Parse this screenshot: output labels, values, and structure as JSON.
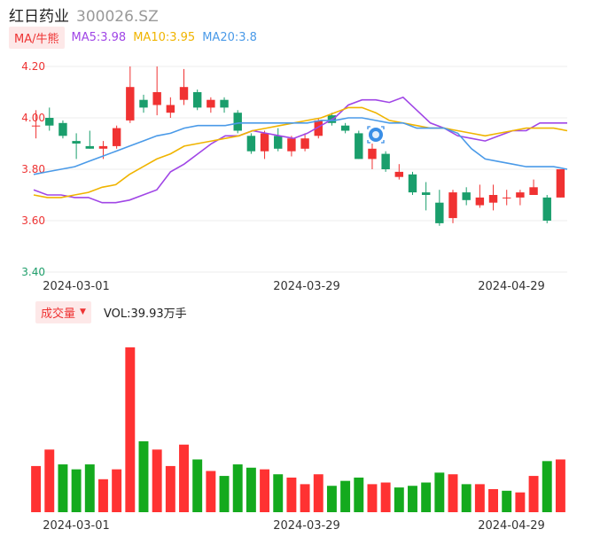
{
  "stock": {
    "name": "红日药业",
    "code": "300026.SZ"
  },
  "ma_legend": {
    "tag": "MA/牛熊",
    "items": [
      {
        "label": "MA5:3.98",
        "color": "#a046e6"
      },
      {
        "label": "MA10:3.95",
        "color": "#f0b400"
      },
      {
        "label": "MA20:3.8",
        "color": "#4a9ae8"
      }
    ]
  },
  "volume_legend": {
    "tag": "成交量",
    "value": "VOL:39.93万手"
  },
  "colors": {
    "up": "#f03232",
    "down": "#1a9e6c",
    "vol_up": "#ff3232",
    "vol_down": "#14aa1e",
    "grid": "#ececec"
  },
  "chart_data": [
    {
      "type": "candlestick",
      "ylim": [
        3.4,
        4.2
      ],
      "yticks": [
        "4.20",
        "4.00",
        "3.80",
        "3.60",
        "3.40"
      ],
      "xticks": [
        "2024-03-01",
        "2024-03-29",
        "2024-04-29"
      ],
      "candles": [
        {
          "o": 3.97,
          "c": 3.97,
          "h": 4.03,
          "l": 3.92
        },
        {
          "o": 4.0,
          "c": 3.97,
          "h": 4.04,
          "l": 3.95
        },
        {
          "o": 3.98,
          "c": 3.93,
          "h": 3.99,
          "l": 3.92
        },
        {
          "o": 3.91,
          "c": 3.9,
          "h": 3.94,
          "l": 3.84
        },
        {
          "o": 3.89,
          "c": 3.88,
          "h": 3.95,
          "l": 3.88
        },
        {
          "o": 3.88,
          "c": 3.89,
          "h": 3.91,
          "l": 3.84
        },
        {
          "o": 3.89,
          "c": 3.96,
          "h": 3.97,
          "l": 3.88
        },
        {
          "o": 3.99,
          "c": 4.12,
          "h": 4.2,
          "l": 3.98
        },
        {
          "o": 4.07,
          "c": 4.04,
          "h": 4.09,
          "l": 4.02
        },
        {
          "o": 4.05,
          "c": 4.1,
          "h": 4.2,
          "l": 4.01
        },
        {
          "o": 4.02,
          "c": 4.05,
          "h": 4.08,
          "l": 4.0
        },
        {
          "o": 4.07,
          "c": 4.12,
          "h": 4.19,
          "l": 4.05
        },
        {
          "o": 4.1,
          "c": 4.04,
          "h": 4.11,
          "l": 4.03
        },
        {
          "o": 4.04,
          "c": 4.07,
          "h": 4.08,
          "l": 4.02
        },
        {
          "o": 4.07,
          "c": 4.04,
          "h": 4.08,
          "l": 4.02
        },
        {
          "o": 4.02,
          "c": 3.95,
          "h": 4.03,
          "l": 3.94
        },
        {
          "o": 3.93,
          "c": 3.87,
          "h": 3.94,
          "l": 3.86
        },
        {
          "o": 3.87,
          "c": 3.94,
          "h": 3.95,
          "l": 3.84
        },
        {
          "o": 3.93,
          "c": 3.88,
          "h": 3.96,
          "l": 3.87
        },
        {
          "o": 3.87,
          "c": 3.92,
          "h": 3.93,
          "l": 3.85
        },
        {
          "o": 3.88,
          "c": 3.92,
          "h": 3.94,
          "l": 3.87
        },
        {
          "o": 3.93,
          "c": 3.99,
          "h": 4.0,
          "l": 3.92
        },
        {
          "o": 4.01,
          "c": 3.98,
          "h": 4.02,
          "l": 3.97
        },
        {
          "o": 3.97,
          "c": 3.95,
          "h": 3.98,
          "l": 3.94
        },
        {
          "o": 3.94,
          "c": 3.84,
          "h": 3.95,
          "l": 3.84
        },
        {
          "o": 3.84,
          "c": 3.88,
          "h": 3.9,
          "l": 3.8
        },
        {
          "o": 3.86,
          "c": 3.8,
          "h": 3.87,
          "l": 3.79
        },
        {
          "o": 3.77,
          "c": 3.79,
          "h": 3.82,
          "l": 3.76
        },
        {
          "o": 3.78,
          "c": 3.71,
          "h": 3.79,
          "l": 3.7
        },
        {
          "o": 3.71,
          "c": 3.7,
          "h": 3.75,
          "l": 3.64
        },
        {
          "o": 3.67,
          "c": 3.59,
          "h": 3.72,
          "l": 3.58
        },
        {
          "o": 3.61,
          "c": 3.71,
          "h": 3.72,
          "l": 3.59
        },
        {
          "o": 3.71,
          "c": 3.68,
          "h": 3.73,
          "l": 3.66
        },
        {
          "o": 3.66,
          "c": 3.69,
          "h": 3.74,
          "l": 3.65
        },
        {
          "o": 3.67,
          "c": 3.7,
          "h": 3.74,
          "l": 3.64
        },
        {
          "o": 3.69,
          "c": 3.69,
          "h": 3.72,
          "l": 3.66
        },
        {
          "o": 3.69,
          "c": 3.71,
          "h": 3.72,
          "l": 3.66
        },
        {
          "o": 3.7,
          "c": 3.73,
          "h": 3.76,
          "l": 3.7
        },
        {
          "o": 3.69,
          "c": 3.6,
          "h": 3.7,
          "l": 3.59
        },
        {
          "o": 3.69,
          "c": 3.8,
          "h": 3.8,
          "l": 3.69
        }
      ],
      "series": [
        {
          "name": "MA5",
          "color": "#a046e6",
          "values": [
            3.72,
            3.7,
            3.7,
            3.69,
            3.69,
            3.67,
            3.67,
            3.68,
            3.7,
            3.72,
            3.79,
            3.82,
            3.86,
            3.9,
            3.93,
            3.93,
            3.95,
            3.94,
            3.93,
            3.92,
            3.94,
            3.97,
            4.0,
            4.05,
            4.07,
            4.07,
            4.06,
            4.08,
            4.03,
            3.98,
            3.96,
            3.93,
            3.92,
            3.91,
            3.93,
            3.95,
            3.95,
            3.98,
            3.98,
            3.98
          ]
        },
        {
          "name": "MA10",
          "color": "#f0b400",
          "values": [
            3.7,
            3.69,
            3.69,
            3.7,
            3.71,
            3.73,
            3.74,
            3.78,
            3.81,
            3.84,
            3.86,
            3.89,
            3.9,
            3.91,
            3.92,
            3.93,
            3.95,
            3.96,
            3.97,
            3.98,
            3.99,
            4.0,
            4.02,
            4.04,
            4.04,
            4.02,
            3.99,
            3.98,
            3.97,
            3.96,
            3.96,
            3.95,
            3.94,
            3.93,
            3.94,
            3.95,
            3.96,
            3.96,
            3.96,
            3.95
          ]
        },
        {
          "name": "MA20",
          "color": "#4a9ae8",
          "values": [
            3.78,
            3.79,
            3.8,
            3.81,
            3.83,
            3.85,
            3.87,
            3.89,
            3.91,
            3.93,
            3.94,
            3.96,
            3.97,
            3.97,
            3.97,
            3.98,
            3.98,
            3.98,
            3.98,
            3.98,
            3.98,
            3.99,
            3.99,
            4.0,
            4.0,
            3.99,
            3.98,
            3.98,
            3.96,
            3.96,
            3.96,
            3.94,
            3.88,
            3.84,
            3.83,
            3.82,
            3.81,
            3.81,
            3.81,
            3.8
          ]
        }
      ]
    },
    {
      "type": "bar",
      "title": "成交量",
      "ylim": [
        0,
        100
      ],
      "xticks": [
        "2024-03-01",
        "2024-03-29",
        "2024-04-29"
      ],
      "values": [
        28,
        38,
        29,
        26,
        29,
        20,
        26,
        100,
        43,
        38,
        28,
        41,
        32,
        25,
        22,
        29,
        27,
        26,
        23,
        21,
        17,
        23,
        16,
        19,
        21,
        17,
        18,
        15,
        16,
        18,
        24,
        23,
        17,
        17,
        14,
        13,
        12,
        22,
        31,
        32
      ],
      "up": [
        true,
        true,
        false,
        false,
        false,
        true,
        true,
        true,
        false,
        true,
        true,
        true,
        false,
        true,
        false,
        false,
        false,
        true,
        false,
        true,
        true,
        true,
        false,
        false,
        false,
        true,
        true,
        false,
        false,
        false,
        false,
        true,
        false,
        true,
        true,
        false,
        true,
        true,
        false,
        true
      ]
    }
  ]
}
